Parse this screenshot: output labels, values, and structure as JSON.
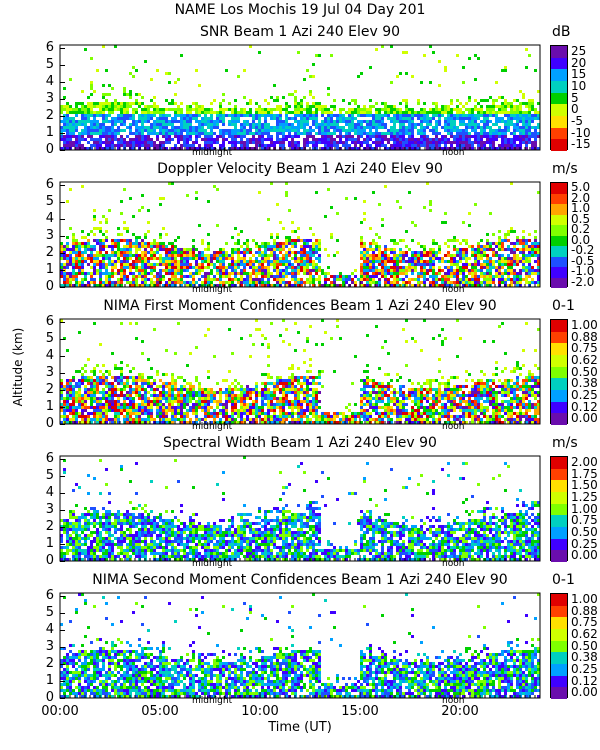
{
  "header": {
    "line1": "NAME Los Mochis    19 Jul 04 Day 201"
  },
  "axes": {
    "ylabel": "Altitude (km)",
    "xlabel": "Time (UT)",
    "x_ticks": [
      "00:00",
      "05:00",
      "10:00",
      "15:00",
      "20:00"
    ],
    "y_ticks": [
      "0",
      "1",
      "2",
      "3",
      "4",
      "5",
      "6"
    ],
    "midnight_label": "midnight",
    "noon_label": "noon"
  },
  "colors": {
    "scale": [
      "#6a0dad",
      "#3f00ff",
      "#1e50ff",
      "#00a0ff",
      "#00d0c0",
      "#00d000",
      "#7fff00",
      "#d0ff00",
      "#ffe000",
      "#ffa500",
      "#ff4000",
      "#e00000"
    ]
  },
  "chart_data": [
    {
      "type": "heatmap",
      "title": "SNR Beam 1 Azi 240 Elev 90",
      "unit": "dB",
      "colorbar": [
        "25",
        "20",
        "15",
        "10",
        "5",
        "0",
        "-5",
        "-10",
        "-15"
      ],
      "xlim": [
        0,
        24
      ],
      "ylim": [
        0,
        6.2
      ]
    },
    {
      "type": "heatmap",
      "title": "Doppler Velocity Beam 1 Azi 240 Elev 90",
      "unit": "m/s",
      "colorbar": [
        "5.0",
        "2.0",
        "1.0",
        "0.5",
        "0.2",
        "0.0",
        "-0.2",
        "-0.5",
        "-1.0",
        "-2.0"
      ],
      "xlim": [
        0,
        24
      ],
      "ylim": [
        0,
        6.2
      ]
    },
    {
      "type": "heatmap",
      "title": "NIMA First Moment Confidences Beam 1 Azi 240 Elev 90",
      "unit": "0-1",
      "colorbar": [
        "1.00",
        "0.88",
        "0.75",
        "0.62",
        "0.50",
        "0.38",
        "0.25",
        "0.12",
        "0.00"
      ],
      "xlim": [
        0,
        24
      ],
      "ylim": [
        0,
        6.2
      ]
    },
    {
      "type": "heatmap",
      "title": "Spectral Width Beam 1 Azi 240 Elev 90",
      "unit": "m/s",
      "colorbar": [
        "2.00",
        "1.75",
        "1.50",
        "1.25",
        "1.00",
        "0.75",
        "0.50",
        "0.25",
        "0.00"
      ],
      "xlim": [
        0,
        24
      ],
      "ylim": [
        0,
        6.2
      ]
    },
    {
      "type": "heatmap",
      "title": "NIMA Second Moment Confidences Beam 1 Azi 240 Elev 90",
      "unit": "0-1",
      "colorbar": [
        "1.00",
        "0.88",
        "0.75",
        "0.62",
        "0.50",
        "0.38",
        "0.25",
        "0.12",
        "0.00"
      ],
      "xlim": [
        0,
        24
      ],
      "ylim": [
        0,
        6.2
      ]
    }
  ]
}
